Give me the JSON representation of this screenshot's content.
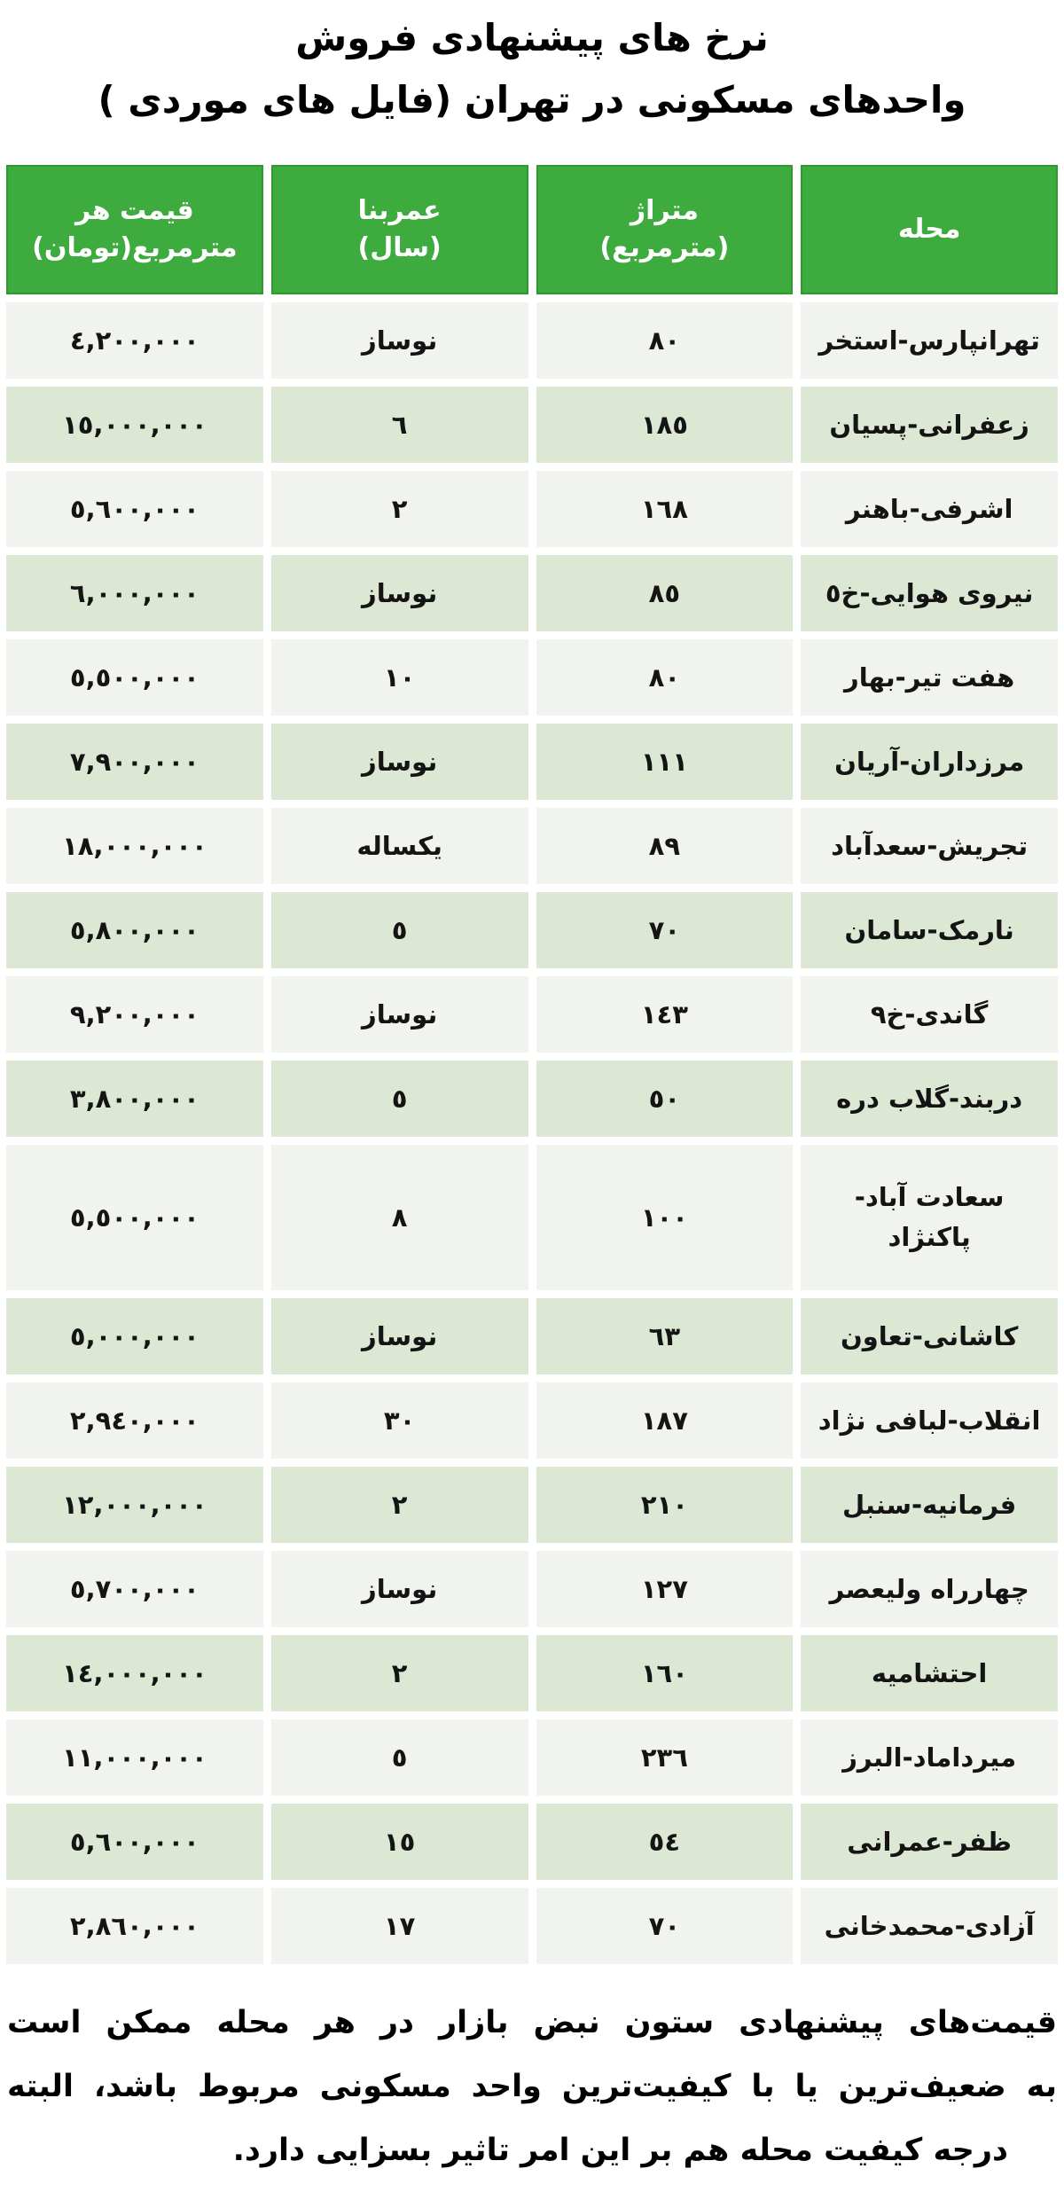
{
  "title": {
    "line1": "نرخ های پیشنهادی فروش",
    "line2": "واحدهای مسکونی در تهران (فایل های موردی )"
  },
  "colors": {
    "header_green": "#3dab3d",
    "header_border_green": "#2e9a2e",
    "row_light": "#f1f4ee",
    "row_green": "#dde8d4",
    "header_text": "#ffffff",
    "body_text": "#141414"
  },
  "table": {
    "columns": [
      {
        "id": "neighborhood",
        "line1": "محله",
        "line2": ""
      },
      {
        "id": "area",
        "line1": "متراژ",
        "line2": "(مترمربع)"
      },
      {
        "id": "age",
        "line1": "عمربنا",
        "line2": "(سال)"
      },
      {
        "id": "price",
        "line1": "قیمت هر",
        "line2": "مترمربع(تومان)"
      }
    ],
    "rows": [
      {
        "neighborhood": "تهرانپارس-استخر",
        "area": "٨٠",
        "age": "نوساز",
        "price": "٤,٢٠٠,٠٠٠"
      },
      {
        "neighborhood": "زعفرانی-پسیان",
        "area": "١٨٥",
        "age": "٦",
        "price": "١٥,٠٠٠,٠٠٠"
      },
      {
        "neighborhood": "اشرفی-باهنر",
        "area": "١٦٨",
        "age": "٢",
        "price": "٥,٦٠٠,٠٠٠"
      },
      {
        "neighborhood": "نیروی هوایی-خ٥",
        "area": "٨٥",
        "age": "نوساز",
        "price": "٦,٠٠٠,٠٠٠"
      },
      {
        "neighborhood": "هفت تیر-بهار",
        "area": "٨٠",
        "age": "١٠",
        "price": "٥,٥٠٠,٠٠٠"
      },
      {
        "neighborhood": "مرزداران-آریان",
        "area": "١١١",
        "age": "نوساز",
        "price": "٧,٩٠٠,٠٠٠"
      },
      {
        "neighborhood": "تجریش-سعدآباد",
        "area": "٨٩",
        "age": "یکساله",
        "price": "١٨,٠٠٠,٠٠٠"
      },
      {
        "neighborhood": "نارمک-سامان",
        "area": "٧٠",
        "age": "٥",
        "price": "٥,٨٠٠,٠٠٠"
      },
      {
        "neighborhood": "گاندی-خ٩",
        "area": "١٤٣",
        "age": "نوساز",
        "price": "٩,٢٠٠,٠٠٠"
      },
      {
        "neighborhood": "دربند-گلاب دره",
        "area": "٥٠",
        "age": "٥",
        "price": "٣,٨٠٠,٠٠٠"
      },
      {
        "neighborhood": "سعادت آباد-\nپاکنژاد",
        "area": "١٠٠",
        "age": "٨",
        "price": "٥,٥٠٠,٠٠٠"
      },
      {
        "neighborhood": "کاشانی-تعاون",
        "area": "٦٣",
        "age": "نوساز",
        "price": "٥,٠٠٠,٠٠٠"
      },
      {
        "neighborhood": "انقلاب-لبافی نژاد",
        "area": "١٨٧",
        "age": "٣٠",
        "price": "٢,٩٤٠,٠٠٠"
      },
      {
        "neighborhood": "فرمانیه-سنبل",
        "area": "٢١٠",
        "age": "٢",
        "price": "١٢,٠٠٠,٠٠٠"
      },
      {
        "neighborhood": "چهارراه ولیعصر",
        "area": "١٢٧",
        "age": "نوساز",
        "price": "٥,٧٠٠,٠٠٠"
      },
      {
        "neighborhood": "احتشامیه",
        "area": "١٦٠",
        "age": "٢",
        "price": "١٤,٠٠٠,٠٠٠"
      },
      {
        "neighborhood": "میرداماد-البرز",
        "area": "٢٣٦",
        "age": "٥",
        "price": "١١,٠٠٠,٠٠٠"
      },
      {
        "neighborhood": "ظفر-عمرانی",
        "area": "٥٤",
        "age": "١٥",
        "price": "٥,٦٠٠,٠٠٠"
      },
      {
        "neighborhood": "آزادی-محمدخانی",
        "area": "٧٠",
        "age": "١٧",
        "price": "٢,٨٦٠,٠٠٠"
      }
    ]
  },
  "footnote": {
    "lines": [
      "قیمت‌های پیشنهادی ستون نبض بازار در هر محله ممکن است",
      "به ضعیف‌ترین یا با کیفیت‌ترین واحد مسکونی مربوط باشد، البته",
      "درجه کیفیت محله هم بر این امر تاثیر بسزایی دارد."
    ]
  }
}
